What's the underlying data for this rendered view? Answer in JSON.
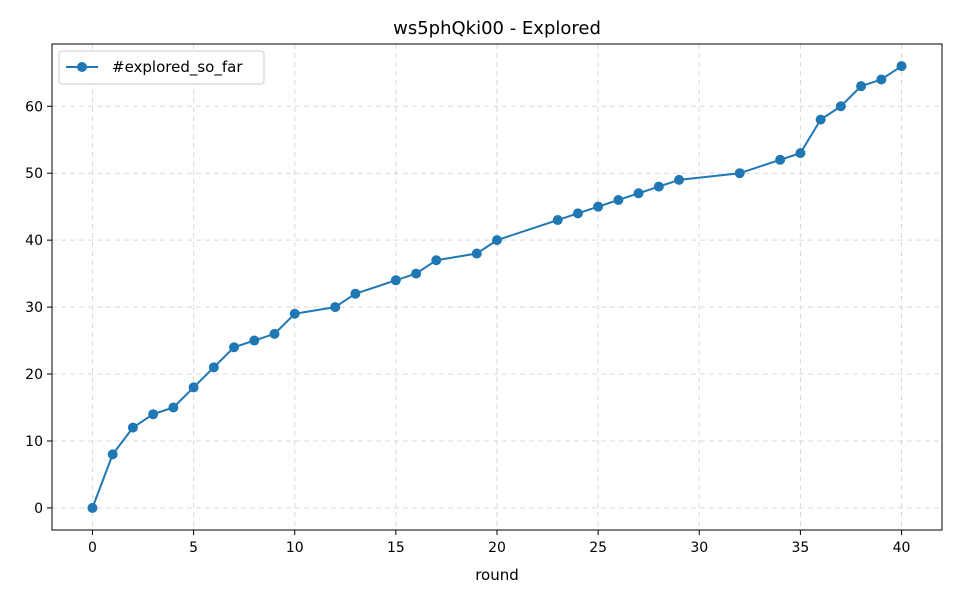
{
  "chart_data": {
    "type": "line",
    "title": "ws5phQki00 - Explored",
    "xlabel": "round",
    "ylabel": "",
    "xlim": [
      -2,
      42
    ],
    "ylim": [
      -3.3,
      69.3
    ],
    "xticks": [
      0,
      5,
      10,
      15,
      20,
      25,
      30,
      35,
      40
    ],
    "yticks": [
      0,
      10,
      20,
      30,
      40,
      50,
      60
    ],
    "grid": true,
    "legend_position": "top-left",
    "series": [
      {
        "name": "#explored_so_far",
        "color": "#1f77b4",
        "marker": "circle",
        "x": [
          0,
          1,
          2,
          3,
          4,
          5,
          6,
          7,
          8,
          9,
          10,
          12,
          13,
          15,
          16,
          17,
          19,
          20,
          23,
          24,
          25,
          26,
          27,
          28,
          29,
          32,
          34,
          35,
          36,
          37,
          38,
          39,
          40
        ],
        "y": [
          0,
          8,
          12,
          14,
          15,
          18,
          21,
          24,
          25,
          26,
          29,
          30,
          32,
          34,
          35,
          37,
          38,
          40,
          43,
          44,
          45,
          46,
          47,
          48,
          49,
          50,
          52,
          53,
          58,
          60,
          63,
          64,
          66
        ]
      }
    ]
  }
}
